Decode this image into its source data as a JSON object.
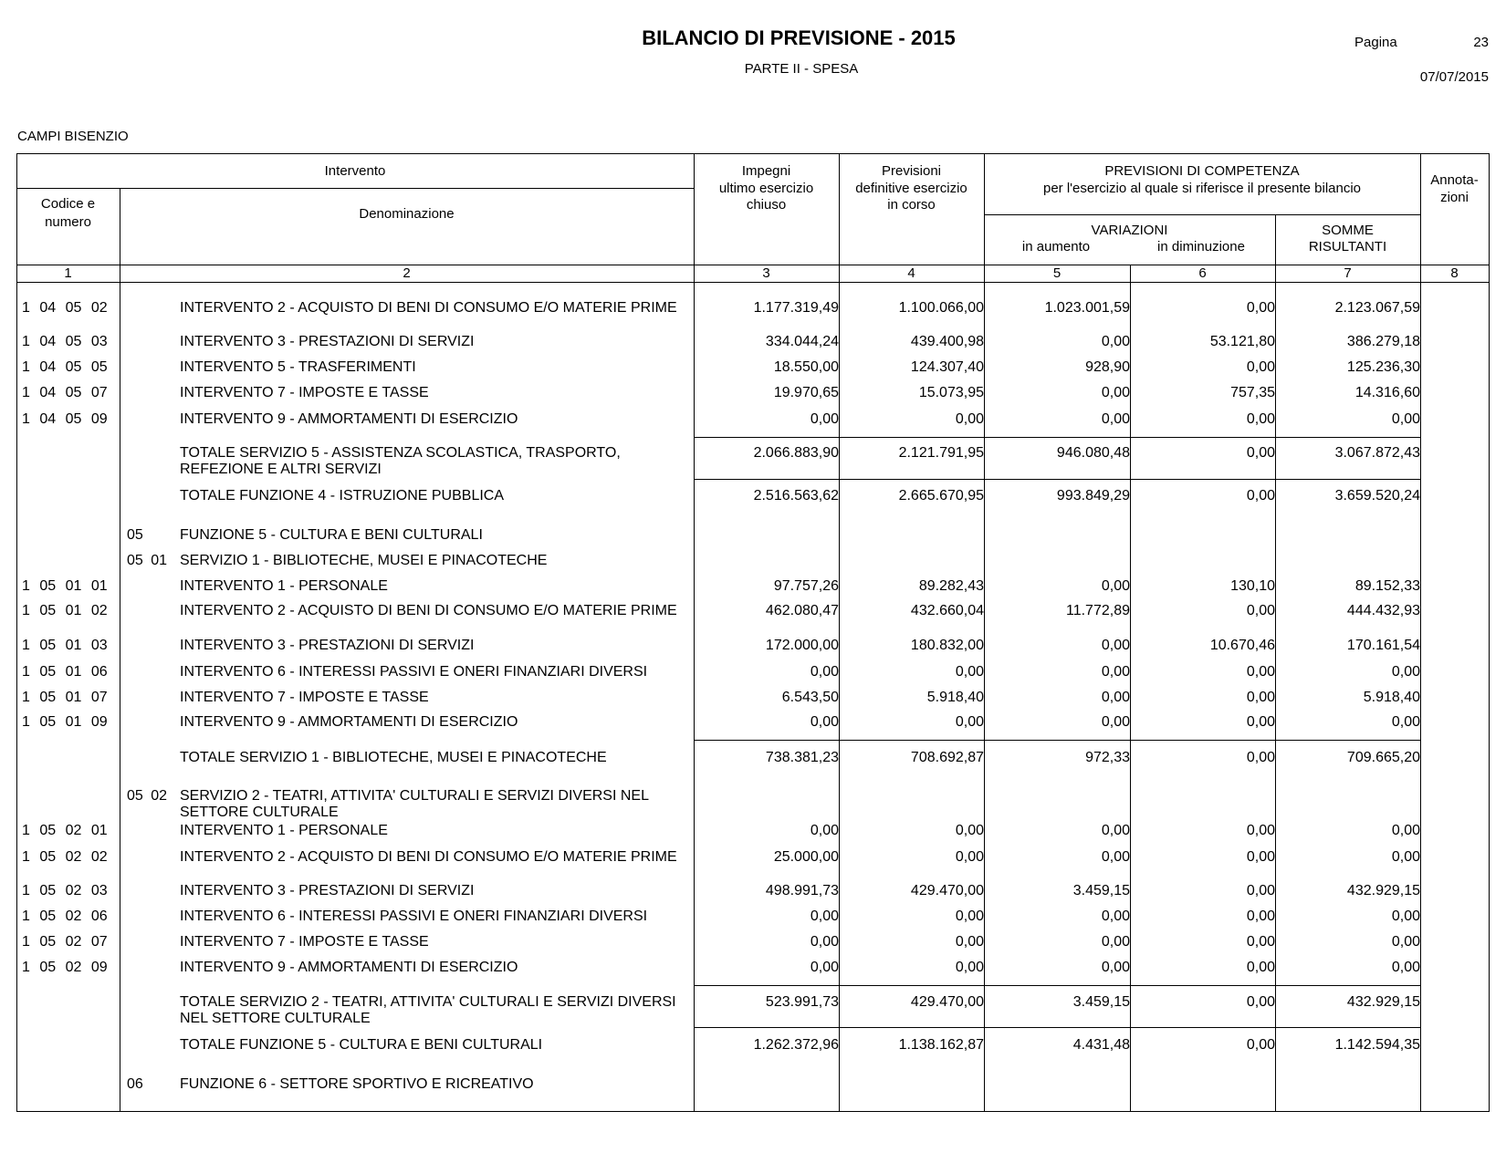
{
  "header": {
    "title": "BILANCIO DI PREVISIONE - 2015",
    "subtitle": "PARTE II - SPESA",
    "page_label": "Pagina",
    "page_number": "23",
    "date": "07/07/2015",
    "entity": "CAMPI BISENZIO"
  },
  "table": {
    "columns": {
      "intervento": "Intervento",
      "codice": [
        "Codice e",
        "numero"
      ],
      "denominazione": "Denominazione",
      "impegni": [
        "Impegni",
        "ultimo esercizio",
        "chiuso"
      ],
      "previsioni": [
        "Previsioni",
        "definitive esercizio",
        "in corso"
      ],
      "competenza": [
        "PREVISIONI DI COMPETENZA",
        "per l'esercizio al quale si riferisce il presente bilancio"
      ],
      "variazioni": "VARIAZIONI",
      "aumento": "in aumento",
      "diminuzione": "in diminuzione",
      "somme": [
        "SOMME",
        "RISULTANTI"
      ],
      "annotazioni": [
        "Annota-",
        "zioni"
      ]
    },
    "numbers": [
      "1",
      "2",
      "3",
      "4",
      "5",
      "6",
      "7",
      "8"
    ],
    "rows": [
      {
        "code": "1 04 05 02",
        "description": "INTERVENTO 2 - ACQUISTO DI BENI DI CONSUMO E/O MATERIE PRIME",
        "values": [
          "1.177.319,49",
          "1.100.066,00",
          "1.023.001,59",
          "0,00",
          "2.123.067,59"
        ]
      },
      {
        "code": "1 04 05 03",
        "description": "INTERVENTO 3 - PRESTAZIONI DI SERVIZI",
        "values": [
          "334.044,24",
          "439.400,98",
          "0,00",
          "53.121,80",
          "386.279,18"
        ]
      },
      {
        "code": "1 04 05 05",
        "description": "INTERVENTO 5 - TRASFERIMENTI",
        "values": [
          "18.550,00",
          "124.307,40",
          "928,90",
          "0,00",
          "125.236,30"
        ]
      },
      {
        "code": "1 04 05 07",
        "description": "INTERVENTO 7 - IMPOSTE E TASSE",
        "values": [
          "19.970,65",
          "15.073,95",
          "0,00",
          "757,35",
          "14.316,60"
        ]
      },
      {
        "code": "1 04 05 09",
        "description": "INTERVENTO 9 - AMMORTAMENTI DI ESERCIZIO",
        "values": [
          "0,00",
          "0,00",
          "0,00",
          "0,00",
          "0,00"
        ]
      },
      {
        "description": "TOTALE SERVIZIO 5 - ASSISTENZA SCOLASTICA, TRASPORTO, REFEZIONE E ALTRI SERVIZI",
        "values": [
          "2.066.883,90",
          "2.121.791,95",
          "946.080,48",
          "0,00",
          "3.067.872,43"
        ]
      },
      {
        "description": "TOTALE FUNZIONE 4 - ISTRUZIONE PUBBLICA",
        "values": [
          "2.516.563,62",
          "2.665.670,95",
          "993.849,29",
          "0,00",
          "3.659.520,24"
        ]
      },
      {
        "section": "05",
        "description": "FUNZIONE 5 - CULTURA E BENI CULTURALI"
      },
      {
        "section": "05 01",
        "description": "SERVIZIO 1 - BIBLIOTECHE, MUSEI E PINACOTECHE"
      },
      {
        "code": "1 05 01 01",
        "description": "INTERVENTO 1 - PERSONALE",
        "values": [
          "97.757,26",
          "89.282,43",
          "0,00",
          "130,10",
          "89.152,33"
        ]
      },
      {
        "code": "1 05 01 02",
        "description": "INTERVENTO 2 - ACQUISTO DI BENI DI CONSUMO E/O MATERIE PRIME",
        "values": [
          "462.080,47",
          "432.660,04",
          "11.772,89",
          "0,00",
          "444.432,93"
        ]
      },
      {
        "code": "1 05 01 03",
        "description": "INTERVENTO 3 - PRESTAZIONI DI SERVIZI",
        "values": [
          "172.000,00",
          "180.832,00",
          "0,00",
          "10.670,46",
          "170.161,54"
        ]
      },
      {
        "code": "1 05 01 06",
        "description": "INTERVENTO 6 - INTERESSI PASSIVI E ONERI FINANZIARI DIVERSI",
        "values": [
          "0,00",
          "0,00",
          "0,00",
          "0,00",
          "0,00"
        ]
      },
      {
        "code": "1 05 01 07",
        "description": "INTERVENTO 7 - IMPOSTE E TASSE",
        "values": [
          "6.543,50",
          "5.918,40",
          "0,00",
          "0,00",
          "5.918,40"
        ]
      },
      {
        "code": "1 05 01 09",
        "description": "INTERVENTO 9 - AMMORTAMENTI DI ESERCIZIO",
        "values": [
          "0,00",
          "0,00",
          "0,00",
          "0,00",
          "0,00"
        ]
      },
      {
        "description": "TOTALE SERVIZIO 1 - BIBLIOTECHE, MUSEI E PINACOTECHE",
        "values": [
          "738.381,23",
          "708.692,87",
          "972,33",
          "0,00",
          "709.665,20"
        ]
      },
      {
        "section": "05 02",
        "description": "SERVIZIO 2 - TEATRI, ATTIVITA' CULTURALI E SERVIZI DIVERSI NEL SETTORE CULTURALE"
      },
      {
        "code": "1 05 02 01",
        "description": "INTERVENTO 1 - PERSONALE",
        "values": [
          "0,00",
          "0,00",
          "0,00",
          "0,00",
          "0,00"
        ]
      },
      {
        "code": "1 05 02 02",
        "description": "INTERVENTO 2 - ACQUISTO DI BENI DI CONSUMO E/O MATERIE PRIME",
        "values": [
          "25.000,00",
          "0,00",
          "0,00",
          "0,00",
          "0,00"
        ]
      },
      {
        "code": "1 05 02 03",
        "description": "INTERVENTO 3 - PRESTAZIONI DI SERVIZI",
        "values": [
          "498.991,73",
          "429.470,00",
          "3.459,15",
          "0,00",
          "432.929,15"
        ]
      },
      {
        "code": "1 05 02 06",
        "description": "INTERVENTO 6 - INTERESSI PASSIVI E ONERI FINANZIARI DIVERSI",
        "values": [
          "0,00",
          "0,00",
          "0,00",
          "0,00",
          "0,00"
        ]
      },
      {
        "code": "1 05 02 07",
        "description": "INTERVENTO 7 - IMPOSTE E TASSE",
        "values": [
          "0,00",
          "0,00",
          "0,00",
          "0,00",
          "0,00"
        ]
      },
      {
        "code": "1 05 02 09",
        "description": "INTERVENTO 9 - AMMORTAMENTI DI ESERCIZIO",
        "values": [
          "0,00",
          "0,00",
          "0,00",
          "0,00",
          "0,00"
        ]
      },
      {
        "description": "TOTALE SERVIZIO 2 - TEATRI, ATTIVITA' CULTURALI E SERVIZI DIVERSI NEL SETTORE CULTURALE",
        "values": [
          "523.991,73",
          "429.470,00",
          "3.459,15",
          "0,00",
          "432.929,15"
        ]
      },
      {
        "description": "TOTALE FUNZIONE 5 - CULTURA E BENI CULTURALI",
        "values": [
          "1.262.372,96",
          "1.138.162,87",
          "4.431,48",
          "0,00",
          "1.142.594,35"
        ]
      },
      {
        "section": "06",
        "description": "FUNZIONE 6 - SETTORE SPORTIVO E RICREATIVO"
      }
    ]
  }
}
